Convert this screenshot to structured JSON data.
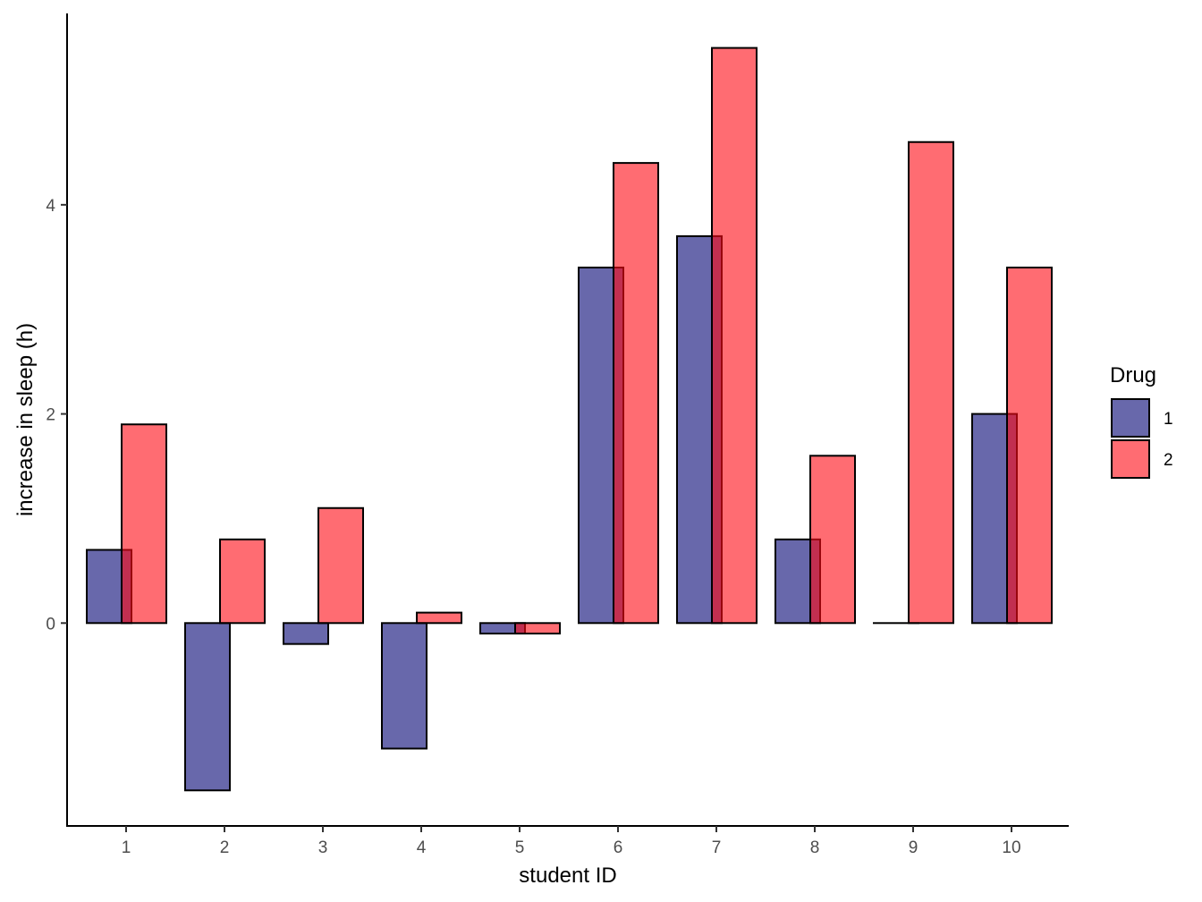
{
  "chart_data": {
    "type": "bar",
    "xlabel": "student ID",
    "ylabel": "increase in sleep (h)",
    "categories": [
      "1",
      "2",
      "3",
      "4",
      "5",
      "6",
      "7",
      "8",
      "9",
      "10"
    ],
    "series": [
      {
        "name": "1",
        "color": "#1a1a80",
        "opacity": 0.66,
        "values": [
          0.7,
          -1.6,
          -0.2,
          -1.2,
          -0.1,
          3.4,
          3.7,
          0.8,
          0.0,
          2.0
        ]
      },
      {
        "name": "2",
        "color": "#ff0a14",
        "opacity": 0.6,
        "values": [
          1.9,
          0.8,
          1.1,
          0.1,
          -0.1,
          4.4,
          5.5,
          1.6,
          4.6,
          3.4
        ]
      }
    ],
    "yticks": [
      0,
      2,
      4
    ],
    "ylim": [
      -1.94,
      5.83
    ],
    "grid": false,
    "legend": {
      "title": "Drug",
      "position": "right",
      "entries": [
        "1",
        "2"
      ]
    }
  }
}
